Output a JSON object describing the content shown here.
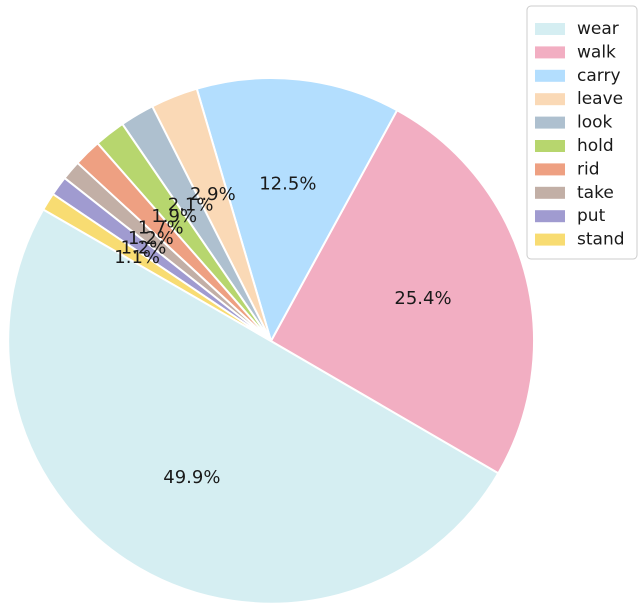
{
  "chart_data": {
    "type": "pie",
    "title": "",
    "categories": [
      "wear",
      "walk",
      "carry",
      "leave",
      "look",
      "hold",
      "rid",
      "take",
      "put",
      "stand"
    ],
    "values": [
      49.9,
      25.4,
      12.5,
      2.9,
      2.1,
      1.9,
      1.7,
      1.2,
      1.2,
      1.1
    ],
    "labels": [
      "49.9%",
      "25.4%",
      "12.5%",
      "2.9%",
      "2.1%",
      "1.9%",
      "1.7%",
      "1.2%",
      "1.2%",
      "1.1%"
    ],
    "colors": [
      "#d5eef2",
      "#f2aec2",
      "#b3defe",
      "#fad9b6",
      "#aec0cf",
      "#b7d66e",
      "#eea082",
      "#c2afa6",
      "#a09bd0",
      "#f8dc72"
    ],
    "legend_position": "top-right",
    "start_angle_deg": 150,
    "direction": "counterclockwise"
  }
}
